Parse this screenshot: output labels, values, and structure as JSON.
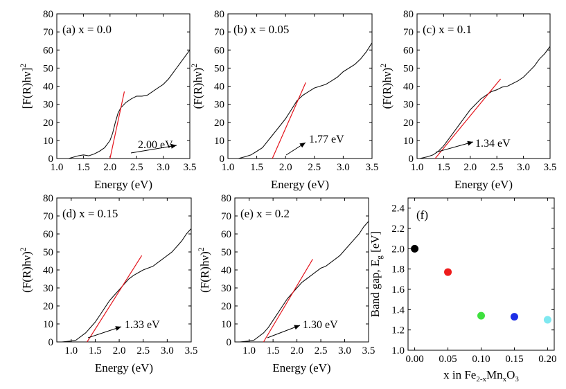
{
  "figure": {
    "energy_axis_label": "Energy (eV)",
    "ylabel_bracket": "[F(R)hν]",
    "ylabel_paren": "(F(R)hν)",
    "ylabel_sup": "2"
  },
  "chart_data": [
    {
      "type": "line",
      "panel": "a",
      "title": "(a) x  = 0.0",
      "xlabel": "Energy (eV)",
      "ylabel": "[F(R)hν]2",
      "xlim": [
        1.0,
        3.5
      ],
      "ylim": [
        0,
        80
      ],
      "xticks": [
        "1.0",
        "1.5",
        "2.0",
        "2.5",
        "3.0",
        "3.5"
      ],
      "yticks": [
        "0",
        "10",
        "20",
        "30",
        "40",
        "50",
        "60",
        "70",
        "80"
      ],
      "series": [
        {
          "name": "spectrum",
          "x": [
            1.22,
            1.4,
            1.5,
            1.6,
            1.7,
            1.8,
            1.9,
            2.0,
            2.05,
            2.1,
            2.15,
            2.2,
            2.3,
            2.4,
            2.5,
            2.6,
            2.7,
            2.8,
            2.9,
            3.0,
            3.1,
            3.2,
            3.3,
            3.4,
            3.5
          ],
          "y": [
            0,
            1.5,
            2,
            1.5,
            2.5,
            4,
            6,
            10,
            14,
            20,
            25,
            28,
            31,
            33,
            34.5,
            34.5,
            35,
            37,
            39,
            41,
            44,
            48,
            52,
            56,
            60
          ]
        },
        {
          "name": "linear fit",
          "x": [
            2.0,
            2.27
          ],
          "y": [
            0,
            37
          ]
        }
      ],
      "annotation": {
        "text": "2.00 eV",
        "x": 2.0
      }
    },
    {
      "type": "line",
      "panel": "b",
      "title": "(b) x  = 0.05",
      "xlabel": "Energy (eV)",
      "ylabel": "(F(R)hν)2",
      "xlim": [
        1.0,
        3.5
      ],
      "ylim": [
        0,
        80
      ],
      "xticks": [
        "1.0",
        "1.5",
        "2.0",
        "2.5",
        "3.0",
        "3.5"
      ],
      "yticks": [
        "0",
        "10",
        "20",
        "30",
        "40",
        "50",
        "60",
        "70",
        "80"
      ],
      "series": [
        {
          "name": "spectrum",
          "x": [
            1.18,
            1.3,
            1.4,
            1.5,
            1.6,
            1.7,
            1.8,
            1.9,
            2.0,
            2.1,
            2.2,
            2.3,
            2.4,
            2.5,
            2.6,
            2.7,
            2.8,
            2.9,
            3.0,
            3.1,
            3.2,
            3.3,
            3.4,
            3.5
          ],
          "y": [
            0,
            1,
            2,
            4,
            6,
            10,
            14,
            18,
            22,
            27,
            32,
            35,
            37,
            39,
            40,
            41,
            43,
            45,
            48,
            50,
            52,
            55,
            59,
            64
          ]
        },
        {
          "name": "linear fit",
          "x": [
            1.77,
            2.35
          ],
          "y": [
            0,
            42
          ]
        }
      ],
      "annotation": {
        "text": "1.77 eV",
        "x": 1.77
      }
    },
    {
      "type": "line",
      "panel": "c",
      "title": "(c) x  = 0.1",
      "xlabel": "Energy (eV)",
      "ylabel": "(F(R)hν)2",
      "xlim": [
        1.0,
        3.5
      ],
      "ylim": [
        0,
        80
      ],
      "xticks": [
        "1.0",
        "1.5",
        "2.0",
        "2.5",
        "3.0",
        "3.5"
      ],
      "yticks": [
        "0",
        "10",
        "20",
        "30",
        "40",
        "50",
        "60",
        "70",
        "80"
      ],
      "series": [
        {
          "name": "spectrum",
          "x": [
            1.05,
            1.2,
            1.3,
            1.4,
            1.5,
            1.6,
            1.7,
            1.8,
            1.9,
            2.0,
            2.1,
            2.2,
            2.3,
            2.4,
            2.5,
            2.6,
            2.7,
            2.8,
            2.9,
            3.0,
            3.1,
            3.2,
            3.3,
            3.4,
            3.5
          ],
          "y": [
            0,
            1,
            2,
            4,
            7,
            11,
            15,
            19,
            23,
            27,
            30,
            33,
            35,
            37,
            38,
            39.5,
            40,
            41.5,
            43,
            45,
            48,
            51,
            55,
            58,
            62
          ]
        },
        {
          "name": "linear fit",
          "x": [
            1.34,
            2.57
          ],
          "y": [
            0,
            44
          ]
        }
      ],
      "annotation": {
        "text": "1.34 eV",
        "x": 1.34
      }
    },
    {
      "type": "line",
      "panel": "d",
      "title": "(d) x  = 0.15",
      "xlabel": "Energy (eV)",
      "ylabel": "(F(R)hν)2",
      "xlim": [
        0.7,
        3.5
      ],
      "ylim": [
        0,
        80
      ],
      "xticks": [
        "1.0",
        "1.5",
        "2.0",
        "2.5",
        "3.0",
        "3.5"
      ],
      "yticks": [
        "0",
        "10",
        "20",
        "30",
        "40",
        "50",
        "60",
        "70",
        "80"
      ],
      "series": [
        {
          "name": "spectrum",
          "x": [
            0.8,
            1.0,
            1.1,
            1.2,
            1.3,
            1.4,
            1.5,
            1.6,
            1.7,
            1.8,
            1.9,
            2.0,
            2.1,
            2.2,
            2.3,
            2.4,
            2.5,
            2.6,
            2.7,
            2.8,
            2.9,
            3.0,
            3.1,
            3.2,
            3.3,
            3.4,
            3.5
          ],
          "y": [
            0,
            0.5,
            1,
            3,
            5,
            8,
            11,
            15,
            19,
            23,
            26,
            29,
            32,
            35,
            37,
            38.5,
            40,
            41,
            42,
            44,
            46,
            48,
            50,
            53,
            56,
            60,
            63
          ]
        },
        {
          "name": "linear fit",
          "x": [
            1.33,
            2.47
          ],
          "y": [
            0,
            48
          ]
        }
      ],
      "annotation": {
        "text": "1.33 eV",
        "x": 1.33
      }
    },
    {
      "type": "line",
      "panel": "e",
      "title": "(e) x  = 0.2",
      "xlabel": "Energy (eV)",
      "ylabel": "(F(R)hν)2",
      "xlim": [
        0.7,
        3.5
      ],
      "ylim": [
        0,
        80
      ],
      "xticks": [
        "1.0",
        "1.5",
        "2.0",
        "2.5",
        "3.0",
        "3.5"
      ],
      "yticks": [
        "0",
        "10",
        "20",
        "30",
        "40",
        "50",
        "60",
        "70",
        "80"
      ],
      "series": [
        {
          "name": "spectrum",
          "x": [
            0.8,
            1.0,
            1.1,
            1.2,
            1.3,
            1.4,
            1.5,
            1.6,
            1.7,
            1.8,
            1.9,
            2.0,
            2.1,
            2.2,
            2.3,
            2.4,
            2.5,
            2.6,
            2.7,
            2.8,
            2.9,
            3.0,
            3.1,
            3.2,
            3.3,
            3.4,
            3.5
          ],
          "y": [
            0,
            0.5,
            1,
            3,
            5,
            8,
            12,
            16,
            20,
            24,
            27,
            30,
            33,
            35,
            37,
            39,
            41,
            42,
            44,
            46,
            48,
            51,
            54,
            57,
            60,
            64,
            67
          ]
        },
        {
          "name": "linear fit",
          "x": [
            1.3,
            2.33
          ],
          "y": [
            0,
            46
          ]
        }
      ],
      "annotation": {
        "text": "1.30 eV",
        "x": 1.3
      }
    },
    {
      "type": "scatter",
      "panel": "f",
      "title": "(f)",
      "xlabel": "x in Fe2-xMnxO3",
      "ylabel": "Band gap, Eg [eV]",
      "xlim": [
        -0.01,
        0.21
      ],
      "ylim": [
        1.0,
        2.5
      ],
      "xticks": [
        "0.00",
        "0.05",
        "0.10",
        "0.15",
        "0.20"
      ],
      "yticks": [
        "1.0",
        "1.2",
        "1.4",
        "1.6",
        "1.8",
        "2.0",
        "2.2",
        "2.4"
      ],
      "points": [
        {
          "x": 0.0,
          "y": 2.0,
          "color": "#000000"
        },
        {
          "x": 0.05,
          "y": 1.77,
          "color": "#ee1c1c"
        },
        {
          "x": 0.1,
          "y": 1.34,
          "color": "#3ee03e"
        },
        {
          "x": 0.15,
          "y": 1.33,
          "color": "#1c2ee6"
        },
        {
          "x": 0.2,
          "y": 1.3,
          "color": "#7fe8f0"
        }
      ]
    }
  ]
}
